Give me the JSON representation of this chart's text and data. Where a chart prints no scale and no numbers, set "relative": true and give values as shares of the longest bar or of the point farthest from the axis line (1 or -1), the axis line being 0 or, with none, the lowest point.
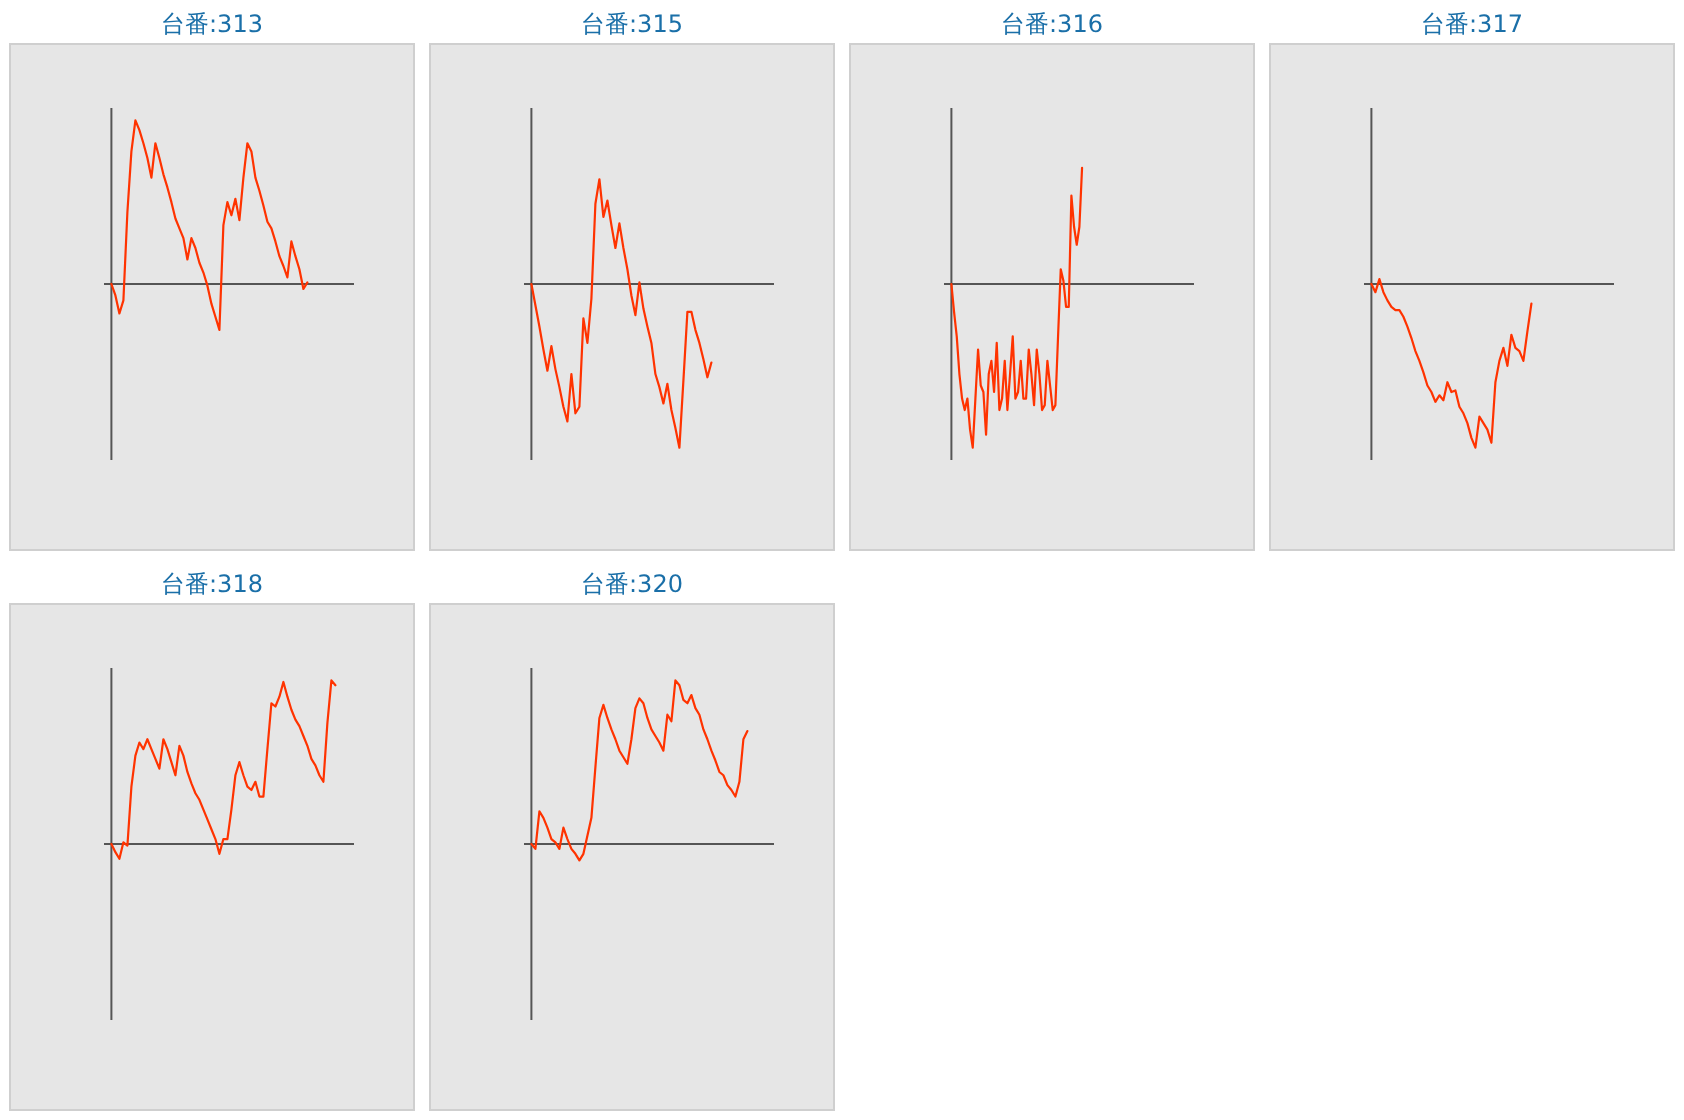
{
  "chart_data": [
    {
      "type": "line",
      "title": "台番:313",
      "relative": true,
      "categories": [
        null,
        null,
        null,
        null,
        null,
        null,
        null,
        null,
        null,
        null,
        null,
        null,
        null,
        null,
        null,
        null,
        null,
        null,
        null,
        null,
        null,
        null,
        null,
        null,
        null,
        null,
        null,
        null,
        null,
        null,
        null,
        null,
        null,
        null,
        null,
        null,
        null,
        null,
        null,
        null,
        null,
        null,
        null,
        null,
        null,
        null,
        null,
        null,
        null,
        null,
        null,
        null,
        null,
        null,
        null,
        null,
        null,
        null,
        null,
        null,
        null
      ],
      "series": [
        {
          "color": "#ff3300",
          "values": [
            0,
            -0.07,
            -0.18,
            -0.1,
            0.44,
            0.81,
            1,
            0.94,
            0.86,
            0.77,
            0.65,
            0.86,
            0.77,
            0.67,
            0.59,
            0.5,
            0.4,
            0.34,
            0.28,
            0.15,
            0.28,
            0.22,
            0.13,
            0.07,
            -0.01,
            -0.12,
            -0.2,
            -0.28,
            0.36,
            0.5,
            0.42,
            0.52,
            0.39,
            0.65,
            0.86,
            0.81,
            0.65,
            0.57,
            0.48,
            0.38,
            0.34,
            0.26,
            0.17,
            0.11,
            0.04,
            0.26,
            0.17,
            0.09,
            -0.03,
            0.01,
            null,
            null,
            null,
            null,
            null,
            null,
            null,
            null,
            null,
            null,
            null
          ]
        }
      ]
    },
    {
      "type": "line",
      "title": "台番:315",
      "relative": true,
      "categories": [
        null,
        null,
        null,
        null,
        null,
        null,
        null,
        null,
        null,
        null,
        null,
        null,
        null,
        null,
        null,
        null,
        null,
        null,
        null,
        null,
        null,
        null,
        null,
        null,
        null,
        null,
        null,
        null,
        null,
        null,
        null,
        null,
        null,
        null,
        null,
        null,
        null,
        null,
        null,
        null,
        null,
        null,
        null,
        null,
        null,
        null,
        null,
        null,
        null,
        null,
        null,
        null,
        null,
        null,
        null,
        null,
        null,
        null,
        null,
        null,
        null
      ],
      "series": [
        {
          "color": "#ff3300",
          "values": [
            0,
            -0.13,
            -0.26,
            -0.4,
            -0.53,
            -0.38,
            -0.52,
            -0.63,
            -0.75,
            -0.84,
            -0.55,
            -0.79,
            -0.75,
            -0.21,
            -0.36,
            -0.09,
            0.49,
            0.64,
            0.41,
            0.51,
            0.36,
            0.22,
            0.37,
            0.22,
            0.09,
            -0.07,
            -0.19,
            0.01,
            -0.15,
            -0.26,
            -0.36,
            -0.55,
            -0.63,
            -0.73,
            -0.61,
            -0.77,
            -0.88,
            -1,
            -0.59,
            -0.17,
            -0.17,
            -0.28,
            -0.36,
            -0.46,
            -0.57,
            -0.48,
            null,
            null,
            null,
            null,
            null,
            null,
            null,
            null,
            null,
            null,
            null,
            null,
            null,
            null,
            null
          ]
        }
      ]
    },
    {
      "type": "line",
      "title": "台番:316",
      "relative": true,
      "categories": [
        null,
        null,
        null,
        null,
        null,
        null,
        null,
        null,
        null,
        null,
        null,
        null,
        null,
        null,
        null,
        null,
        null,
        null,
        null,
        null,
        null,
        null,
        null,
        null,
        null,
        null,
        null,
        null,
        null,
        null,
        null,
        null,
        null,
        null,
        null,
        null,
        null,
        null,
        null,
        null,
        null,
        null,
        null,
        null,
        null,
        null,
        null,
        null,
        null,
        null,
        null,
        null,
        null,
        null,
        null,
        null,
        null,
        null,
        null,
        null,
        null,
        null,
        null,
        null,
        null,
        null,
        null,
        null,
        null,
        null,
        null,
        null,
        null,
        null,
        null,
        null,
        null,
        null,
        null,
        null,
        null,
        null,
        null,
        null,
        null,
        null,
        null,
        null,
        null,
        null,
        null
      ],
      "series": [
        {
          "color": "#ff3300",
          "values": [
            0,
            -0.17,
            -0.32,
            -0.55,
            -0.7,
            -0.77,
            -0.7,
            -0.89,
            -1,
            -0.7,
            -0.4,
            -0.62,
            -0.66,
            -0.92,
            -0.55,
            -0.47,
            -0.66,
            -0.36,
            -0.77,
            -0.7,
            -0.47,
            -0.77,
            -0.55,
            -0.32,
            -0.7,
            -0.66,
            -0.47,
            -0.7,
            -0.7,
            -0.4,
            -0.55,
            -0.74,
            -0.4,
            -0.55,
            -0.77,
            -0.74,
            -0.47,
            -0.62,
            -0.77,
            -0.74,
            -0.32,
            0.09,
            0.02,
            -0.14,
            -0.14,
            0.54,
            0.35,
            0.24,
            0.35,
            0.71,
            null,
            null,
            null,
            null,
            null,
            null,
            null,
            null,
            null,
            null,
            null,
            null,
            null,
            null,
            null,
            null,
            null,
            null,
            null,
            null,
            null,
            null,
            null,
            null,
            null,
            null,
            null,
            null,
            null,
            null,
            null,
            null,
            null,
            null,
            null,
            null,
            null,
            null,
            null,
            null,
            null
          ]
        }
      ]
    },
    {
      "type": "line",
      "title": "台番:317",
      "relative": true,
      "categories": [
        null,
        null,
        null,
        null,
        null,
        null,
        null,
        null,
        null,
        null,
        null,
        null,
        null,
        null,
        null,
        null,
        null,
        null,
        null,
        null,
        null,
        null,
        null,
        null,
        null,
        null,
        null,
        null,
        null,
        null,
        null,
        null,
        null,
        null,
        null,
        null,
        null,
        null,
        null,
        null,
        null,
        null,
        null,
        null,
        null,
        null,
        null,
        null,
        null,
        null,
        null,
        null,
        null,
        null,
        null,
        null,
        null,
        null,
        null,
        null,
        null
      ],
      "series": [
        {
          "color": "#ff3300",
          "values": [
            0,
            -0.05,
            0.03,
            -0.05,
            -0.1,
            -0.14,
            -0.16,
            -0.16,
            -0.2,
            -0.26,
            -0.33,
            -0.41,
            -0.47,
            -0.54,
            -0.62,
            -0.66,
            -0.72,
            -0.68,
            -0.71,
            -0.6,
            -0.66,
            -0.65,
            -0.75,
            -0.79,
            -0.85,
            -0.94,
            -1,
            -0.81,
            -0.85,
            -0.89,
            -0.97,
            -0.6,
            -0.47,
            -0.39,
            -0.5,
            -0.31,
            -0.39,
            -0.41,
            -0.47,
            -0.29,
            -0.12,
            null,
            null,
            null,
            null,
            null,
            null,
            null,
            null,
            null,
            null,
            null,
            null,
            null,
            null,
            null,
            null,
            null,
            null,
            null,
            null
          ]
        }
      ]
    },
    {
      "type": "line",
      "title": "台番:318",
      "relative": true,
      "categories": [
        null,
        null,
        null,
        null,
        null,
        null,
        null,
        null,
        null,
        null,
        null,
        null,
        null,
        null,
        null,
        null,
        null,
        null,
        null,
        null,
        null,
        null,
        null,
        null,
        null,
        null,
        null,
        null,
        null,
        null,
        null,
        null,
        null,
        null,
        null,
        null,
        null,
        null,
        null,
        null,
        null,
        null,
        null,
        null,
        null,
        null,
        null,
        null,
        null,
        null,
        null,
        null,
        null,
        null,
        null,
        null,
        null,
        null,
        null,
        null,
        null
      ],
      "series": [
        {
          "color": "#ff3300",
          "values": [
            0,
            -0.05,
            -0.09,
            0.01,
            -0.01,
            0.35,
            0.54,
            0.62,
            0.58,
            0.64,
            0.58,
            0.52,
            0.46,
            0.64,
            0.58,
            0.5,
            0.42,
            0.6,
            0.54,
            0.44,
            0.37,
            0.31,
            0.27,
            0.21,
            0.15,
            0.09,
            0.03,
            -0.06,
            0.03,
            0.03,
            0.21,
            0.42,
            0.5,
            0.42,
            0.35,
            0.33,
            0.38,
            0.29,
            0.29,
            0.58,
            0.86,
            0.84,
            0.9,
            0.99,
            0.9,
            0.82,
            0.76,
            0.72,
            0.66,
            0.6,
            0.52,
            0.48,
            0.42,
            0.38,
            0.74,
            1,
            0.97,
            null,
            null,
            null,
            null
          ]
        }
      ]
    },
    {
      "type": "line",
      "title": "台番:320",
      "relative": true,
      "categories": [
        null,
        null,
        null,
        null,
        null,
        null,
        null,
        null,
        null,
        null,
        null,
        null,
        null,
        null,
        null,
        null,
        null,
        null,
        null,
        null,
        null,
        null,
        null,
        null,
        null,
        null,
        null,
        null,
        null,
        null,
        null,
        null,
        null,
        null,
        null,
        null,
        null,
        null,
        null,
        null,
        null,
        null,
        null,
        null,
        null,
        null,
        null,
        null,
        null,
        null,
        null,
        null,
        null,
        null,
        null,
        null,
        null,
        null,
        null,
        null,
        null
      ],
      "series": [
        {
          "color": "#ff3300",
          "values": [
            0,
            -0.03,
            0.2,
            0.16,
            0.1,
            0.03,
            0.01,
            -0.03,
            0.1,
            0.03,
            -0.03,
            -0.06,
            -0.1,
            -0.06,
            0.05,
            0.16,
            0.47,
            0.77,
            0.85,
            0.77,
            0.7,
            0.64,
            0.57,
            0.53,
            0.49,
            0.64,
            0.83,
            0.89,
            0.86,
            0.77,
            0.7,
            0.66,
            0.62,
            0.57,
            0.79,
            0.75,
            1,
            0.97,
            0.88,
            0.86,
            0.91,
            0.83,
            0.79,
            0.7,
            0.64,
            0.57,
            0.51,
            0.44,
            0.42,
            0.36,
            0.33,
            0.29,
            0.38,
            0.64,
            0.69,
            null,
            null,
            null,
            null,
            null,
            null
          ]
        }
      ]
    }
  ]
}
